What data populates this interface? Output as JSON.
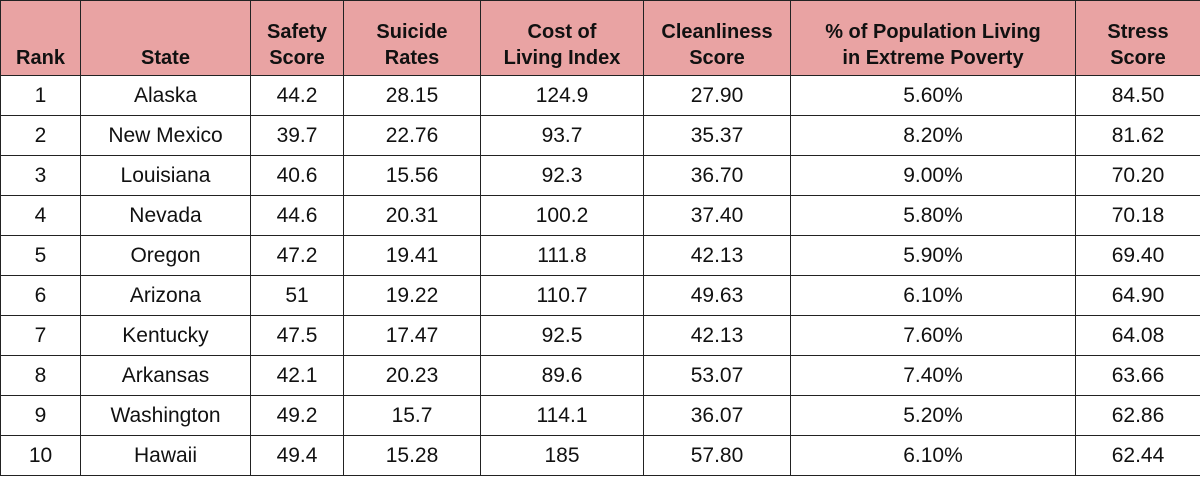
{
  "table": {
    "header": [
      [
        "Rank"
      ],
      [
        "State"
      ],
      [
        "Safety",
        "Score"
      ],
      [
        "Suicide",
        "Rates"
      ],
      [
        "Cost of",
        "Living Index"
      ],
      [
        "Cleanliness",
        "Score"
      ],
      [
        "% of Population Living",
        "in Extreme Poverty"
      ],
      [
        "Stress",
        "Score"
      ]
    ],
    "rows": [
      [
        "1",
        "Alaska",
        "44.2",
        "28.15",
        "124.9",
        "27.90",
        "5.60%",
        "84.50"
      ],
      [
        "2",
        "New Mexico",
        "39.7",
        "22.76",
        "93.7",
        "35.37",
        "8.20%",
        "81.62"
      ],
      [
        "3",
        "Louisiana",
        "40.6",
        "15.56",
        "92.3",
        "36.70",
        "9.00%",
        "70.20"
      ],
      [
        "4",
        "Nevada",
        "44.6",
        "20.31",
        "100.2",
        "37.40",
        "5.80%",
        "70.18"
      ],
      [
        "5",
        "Oregon",
        "47.2",
        "19.41",
        "111.8",
        "42.13",
        "5.90%",
        "69.40"
      ],
      [
        "6",
        "Arizona",
        "51",
        "19.22",
        "110.7",
        "49.63",
        "6.10%",
        "64.90"
      ],
      [
        "7",
        "Kentucky",
        "47.5",
        "17.47",
        "92.5",
        "42.13",
        "7.60%",
        "64.08"
      ],
      [
        "8",
        "Arkansas",
        "42.1",
        "20.23",
        "89.6",
        "53.07",
        "7.40%",
        "63.66"
      ],
      [
        "9",
        "Washington",
        "49.2",
        "15.7",
        "114.1",
        "36.07",
        "5.20%",
        "62.86"
      ],
      [
        "10",
        "Hawaii",
        "49.4",
        "15.28",
        "185",
        "57.80",
        "6.10%",
        "62.44"
      ]
    ]
  }
}
